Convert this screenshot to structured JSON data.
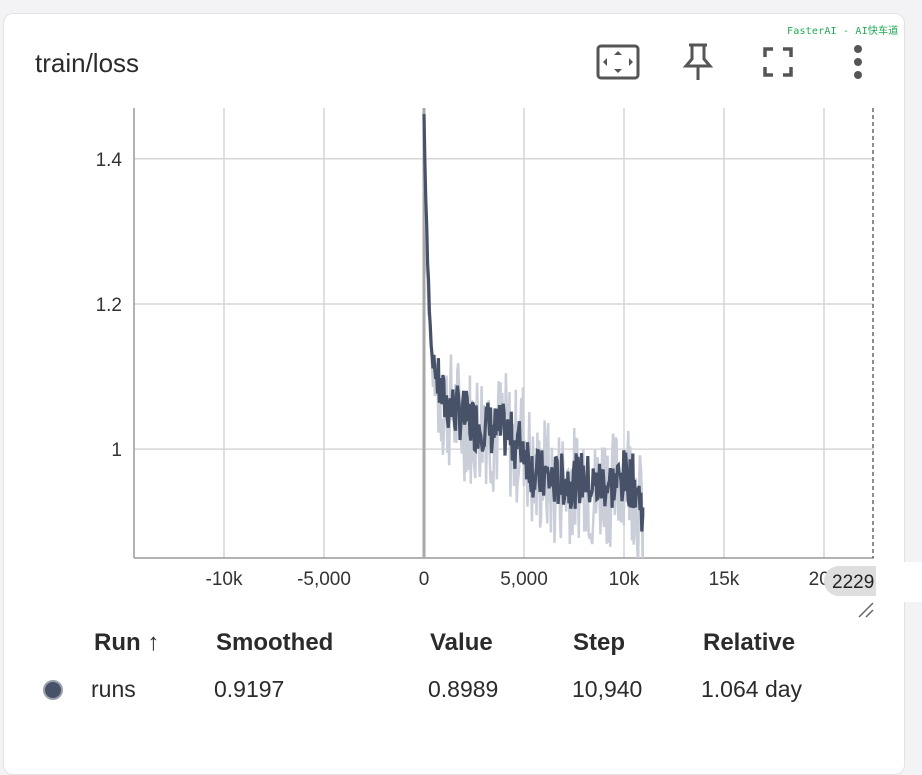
{
  "watermark": "FasterAI - AI快车道",
  "card": {
    "title": "train/loss",
    "toolbar": [
      "fit-domain-icon",
      "pin-icon",
      "fullscreen-icon",
      "more-vert-icon"
    ]
  },
  "chart_data": {
    "type": "line",
    "title": "train/loss",
    "xlabel": "",
    "ylabel": "",
    "xlim": [
      -14500,
      22500
    ],
    "ylim": [
      0.85,
      1.47
    ],
    "x_ticks": [
      {
        "value": -10000,
        "label": "-10k"
      },
      {
        "value": -5000,
        "label": "-5,000"
      },
      {
        "value": 0,
        "label": "0"
      },
      {
        "value": 5000,
        "label": "5,000"
      },
      {
        "value": 10000,
        "label": "10k"
      },
      {
        "value": 15000,
        "label": "15k"
      },
      {
        "value": 20000,
        "label": "20k"
      }
    ],
    "y_ticks": [
      {
        "value": 1.0,
        "label": "1"
      },
      {
        "value": 1.2,
        "label": "1.2"
      },
      {
        "value": 1.4,
        "label": "1.4"
      }
    ],
    "grid": true,
    "hover_label": "2229",
    "series": [
      {
        "name": "runs",
        "color": "#475167",
        "raw_color": "#c9ced9",
        "x": [
          0,
          100,
          200,
          400,
          700,
          1000,
          1500,
          2000,
          2500,
          3000,
          3500,
          4000,
          4500,
          5000,
          5500,
          6000,
          6500,
          7000,
          7500,
          8000,
          8500,
          9000,
          9500,
          10000,
          10500,
          10940
        ],
        "raw": [
          1.46,
          1.31,
          1.21,
          1.11,
          1.08,
          1.06,
          1.05,
          1.04,
          1.03,
          1.04,
          1.02,
          1.03,
          1.0,
          1.02,
          0.95,
          0.97,
          0.94,
          0.96,
          0.95,
          0.97,
          0.93,
          0.96,
          0.94,
          0.98,
          0.95,
          0.8989
        ],
        "smoothed": [
          1.46,
          1.33,
          1.24,
          1.13,
          1.09,
          1.065,
          1.055,
          1.045,
          1.035,
          1.035,
          1.025,
          1.025,
          1.01,
          1.005,
          0.965,
          0.962,
          0.955,
          0.958,
          0.955,
          0.962,
          0.948,
          0.955,
          0.95,
          0.962,
          0.955,
          0.9197
        ]
      }
    ]
  },
  "table": {
    "headers": [
      "Run ↑",
      "Smoothed",
      "Value",
      "Step",
      "Relative"
    ],
    "rows": [
      {
        "run": "runs",
        "smoothed": "0.9197",
        "value": "0.8989",
        "step": "10,940",
        "relative": "1.064 day",
        "color": "#475167"
      }
    ]
  }
}
